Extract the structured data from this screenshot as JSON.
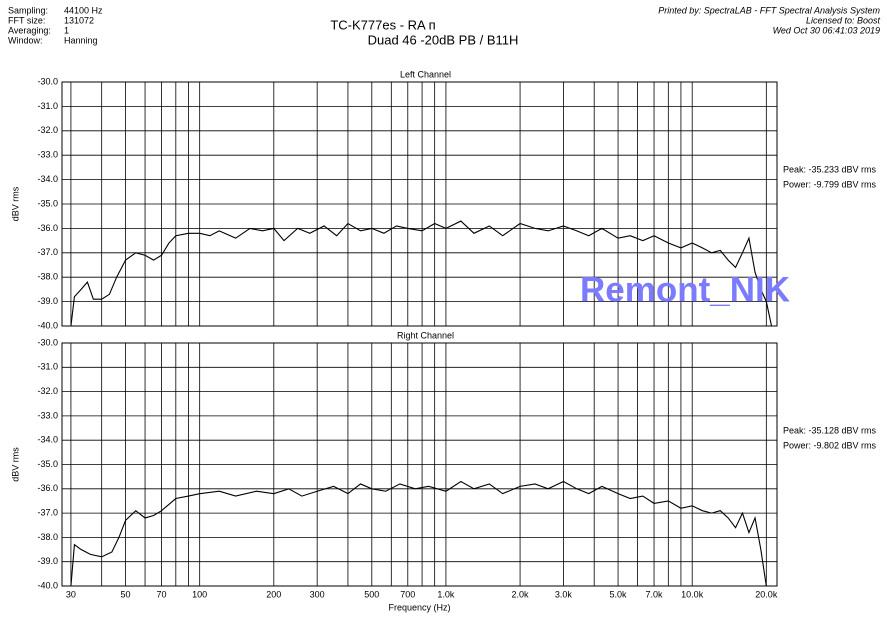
{
  "header": {
    "info": [
      {
        "label": "Sampling:",
        "value": "44100 Hz"
      },
      {
        "label": "FFT size:",
        "value": "131072"
      },
      {
        "label": "Averaging:",
        "value": "1"
      },
      {
        "label": "Window:",
        "value": "Hanning"
      }
    ],
    "title": "TC-K777es - RA п",
    "subtitle": "Duad 46  -20dB  PB   /  B11H",
    "printed_by": "Printed by: SpectraLAB - FFT Spectral Analysis System",
    "licensed_to": "Licensed to: Boost",
    "date": "Wed Oct 30 06:41:03 2019",
    "watermark": "Remont_NIK"
  },
  "chart_data": [
    {
      "type": "line",
      "title": "Left Channel",
      "ylabel": "dBV rms",
      "log_x": true,
      "color": "#000000",
      "xlim": [
        27.6,
        22100
      ],
      "ylim": [
        -40,
        -30
      ],
      "yticks": [
        {
          "value": -30,
          "label": "-30.0"
        },
        {
          "value": -31,
          "label": "-31.0"
        },
        {
          "value": -32,
          "label": "-32.0"
        },
        {
          "value": -33,
          "label": "-33.0"
        },
        {
          "value": -34,
          "label": "-34.0"
        },
        {
          "value": -35,
          "label": "-35.0"
        },
        {
          "value": -36,
          "label": "-36.0"
        },
        {
          "value": -37,
          "label": "-37.0"
        },
        {
          "value": -38,
          "label": "-38.0"
        },
        {
          "value": -39,
          "label": "-39.0"
        },
        {
          "value": -40,
          "label": "-40.0"
        }
      ],
      "xgrid": [
        30,
        40,
        50,
        60,
        70,
        80,
        90,
        100,
        200,
        300,
        400,
        500,
        600,
        700,
        800,
        900,
        1000,
        2000,
        3000,
        4000,
        5000,
        6000,
        7000,
        8000,
        9000,
        10000,
        20000
      ],
      "annotations": [
        "Peak: -35.233 dBV rms",
        "Power: -9.799 dBV rms"
      ],
      "x": [
        30,
        31,
        33,
        35,
        37,
        40,
        43,
        46,
        50,
        55,
        60,
        65,
        70,
        75,
        80,
        90,
        100,
        110,
        120,
        140,
        160,
        180,
        200,
        220,
        250,
        280,
        320,
        360,
        400,
        450,
        500,
        560,
        630,
        700,
        800,
        900,
        1000,
        1150,
        1300,
        1500,
        1700,
        2000,
        2300,
        2600,
        3000,
        3400,
        3800,
        4300,
        5000,
        5600,
        6300,
        7000,
        8000,
        9000,
        10000,
        11000,
        12000,
        13000,
        14000,
        15000,
        16000,
        17000,
        18000,
        19000,
        20000,
        21000
      ],
      "values": [
        -40,
        -38.8,
        -38.5,
        -38.2,
        -38.9,
        -38.9,
        -38.7,
        -38.0,
        -37.3,
        -37.0,
        -37.1,
        -37.3,
        -37.1,
        -36.6,
        -36.3,
        -36.2,
        -36.2,
        -36.3,
        -36.1,
        -36.4,
        -36.0,
        -36.1,
        -36.0,
        -36.5,
        -36.0,
        -36.2,
        -35.9,
        -36.3,
        -35.8,
        -36.1,
        -36.0,
        -36.2,
        -35.9,
        -36.0,
        -36.1,
        -35.8,
        -36.0,
        -35.7,
        -36.2,
        -35.9,
        -36.3,
        -35.8,
        -36.0,
        -36.1,
        -35.9,
        -36.1,
        -36.3,
        -36.0,
        -36.4,
        -36.3,
        -36.5,
        -36.3,
        -36.6,
        -36.8,
        -36.6,
        -36.8,
        -37.0,
        -36.9,
        -37.3,
        -37.6,
        -37.0,
        -36.4,
        -37.8,
        -38.5,
        -39.0,
        -40.0
      ]
    },
    {
      "type": "line",
      "title": "Right Channel",
      "ylabel": "dBV rms",
      "xlabel": "Frequency (Hz)",
      "log_x": true,
      "color": "#000000",
      "xlim": [
        27.6,
        22100
      ],
      "ylim": [
        -40,
        -30
      ],
      "yticks": [
        {
          "value": -30,
          "label": "-30.0"
        },
        {
          "value": -31,
          "label": "-31.0"
        },
        {
          "value": -32,
          "label": "-32.0"
        },
        {
          "value": -33,
          "label": "-33.0"
        },
        {
          "value": -34,
          "label": "-34.0"
        },
        {
          "value": -35,
          "label": "-35.0"
        },
        {
          "value": -36,
          "label": "-36.0"
        },
        {
          "value": -37,
          "label": "-37.0"
        },
        {
          "value": -38,
          "label": "-38.0"
        },
        {
          "value": -39,
          "label": "-39.0"
        },
        {
          "value": -40,
          "label": "-40.0"
        }
      ],
      "xticks": [
        30,
        50,
        70,
        100,
        200,
        300,
        500,
        700,
        {
          "value": 1000,
          "label": "1.0k"
        },
        {
          "value": 2000,
          "label": "2.0k"
        },
        {
          "value": 3000,
          "label": "3.0k"
        },
        {
          "value": 5000,
          "label": "5.0k"
        },
        {
          "value": 7000,
          "label": "7.0k"
        },
        {
          "value": 10000,
          "label": "10.0k"
        },
        {
          "value": 20000,
          "label": "20.0k"
        }
      ],
      "xminor": [
        40,
        60,
        80,
        90,
        400,
        600,
        800,
        900,
        4000,
        6000,
        8000,
        9000
      ],
      "annotations": [
        "Peak: -35.128 dBV rms",
        "Power: -9.802 dBV rms"
      ],
      "x": [
        30,
        31,
        33,
        36,
        40,
        44,
        47,
        50,
        55,
        60,
        65,
        70,
        80,
        90,
        100,
        120,
        140,
        170,
        200,
        230,
        260,
        300,
        350,
        400,
        450,
        500,
        570,
        650,
        750,
        850,
        1000,
        1150,
        1300,
        1500,
        1700,
        2000,
        2300,
        2600,
        3000,
        3400,
        3800,
        4300,
        5000,
        5600,
        6300,
        7000,
        8000,
        9000,
        10000,
        11000,
        12000,
        13000,
        14000,
        15000,
        16000,
        17000,
        18000,
        19000,
        20000
      ],
      "values": [
        -40,
        -38.3,
        -38.5,
        -38.7,
        -38.8,
        -38.6,
        -38.0,
        -37.3,
        -36.9,
        -37.2,
        -37.1,
        -36.9,
        -36.4,
        -36.3,
        -36.2,
        -36.1,
        -36.3,
        -36.1,
        -36.2,
        -36.0,
        -36.3,
        -36.1,
        -35.9,
        -36.2,
        -35.8,
        -36.0,
        -36.1,
        -35.8,
        -36.0,
        -35.9,
        -36.1,
        -35.7,
        -36.0,
        -35.8,
        -36.2,
        -35.9,
        -35.8,
        -36.0,
        -35.7,
        -36.0,
        -36.2,
        -35.9,
        -36.2,
        -36.4,
        -36.3,
        -36.6,
        -36.5,
        -36.8,
        -36.7,
        -36.9,
        -37.0,
        -36.9,
        -37.2,
        -37.6,
        -37.0,
        -37.8,
        -37.2,
        -38.5,
        -40.0
      ]
    }
  ]
}
